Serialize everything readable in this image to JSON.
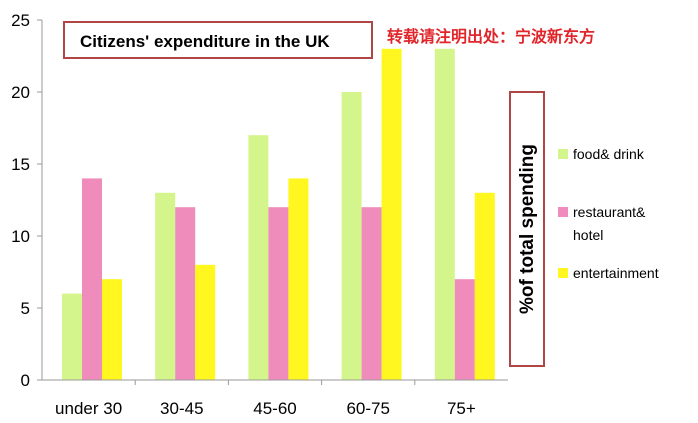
{
  "chart_data": {
    "type": "bar",
    "title": "Citizens' expenditure in the UK",
    "watermark": "转载请注明出处：宁波新东方",
    "ylabel": "%of total spending",
    "categories": [
      "under 30",
      "30-45",
      "45-60",
      "60-75",
      "75+"
    ],
    "ylim": [
      0,
      25
    ],
    "yticks": [
      "0",
      "5",
      "10",
      "15",
      "20",
      "25"
    ],
    "grid": false,
    "legend_position": "right",
    "series": [
      {
        "name": "food& drink",
        "color": "#d4f58c",
        "values": [
          6,
          13,
          17,
          20,
          23
        ]
      },
      {
        "name": "restaurant& hotel",
        "legend_lines": [
          "restaurant&",
          "hotel"
        ],
        "color": "#ef8cbc",
        "values": [
          14,
          12,
          12,
          12,
          7
        ]
      },
      {
        "name": "entertainment",
        "color": "#fff71f",
        "values": [
          7,
          8,
          14,
          23,
          13
        ]
      }
    ]
  },
  "colors": {
    "title_border": "#b04545",
    "watermark": "#e0262b",
    "axis": "#9a9a9a"
  }
}
